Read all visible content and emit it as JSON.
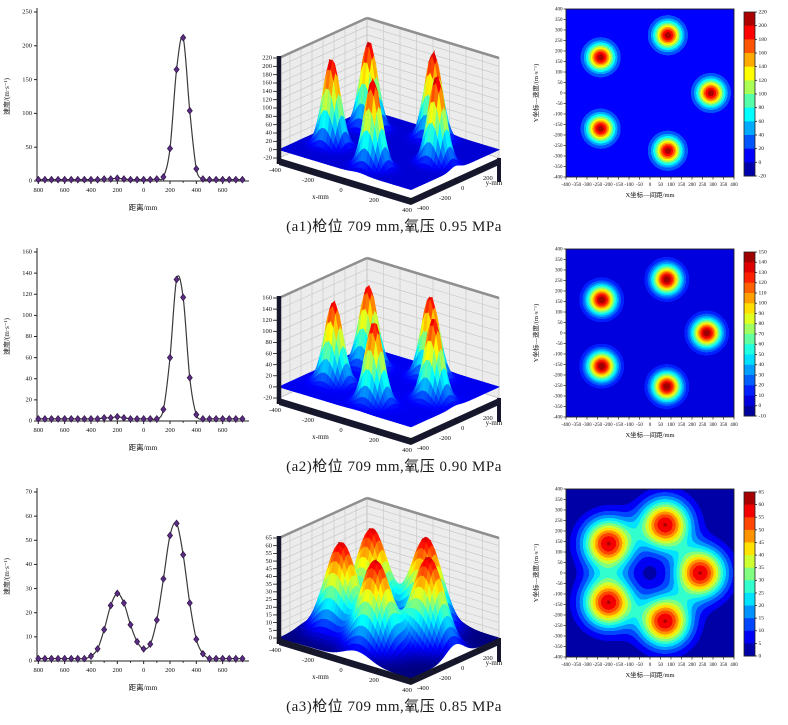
{
  "page": {
    "background": "#ffffff"
  },
  "style": {
    "marker_color": "#5b2d82",
    "marker_edge_color": "#2e1545",
    "line_color": "#3a3a3a",
    "axis_color": "#222222",
    "wall_color": "#ececec",
    "wall_grid_color": "#c6c6c6",
    "wall_cap_color": "#8f8f8f",
    "pedestal_color": "#16162c",
    "colormap": "jet"
  },
  "captions": {
    "a1": "(a1)枪位 709 mm,氧压 0.95 MPa",
    "a2": "(a2)枪位 709 mm,氧压 0.90 MPa",
    "a3": "(a3)枪位 709 mm,氧压 0.85 MPa"
  },
  "chart_data": [
    {
      "id": "a1-line",
      "type": "line",
      "row": "a1",
      "xlabel": "距离/mm",
      "ylabel": "速度/(m·s⁻¹)",
      "ylim": [
        0,
        250
      ],
      "ystep": 50,
      "xticks": [
        -800,
        -600,
        -400,
        -200,
        0,
        200,
        400,
        600
      ],
      "x": [
        -800,
        -750,
        -700,
        -650,
        -600,
        -550,
        -500,
        -450,
        -400,
        -350,
        -300,
        -250,
        -200,
        -150,
        -100,
        -50,
        0,
        50,
        100,
        150,
        200,
        250,
        300,
        350,
        400,
        450,
        500,
        550,
        600,
        650,
        700,
        750
      ],
      "y": [
        2,
        2,
        2,
        2,
        2,
        2,
        2,
        2,
        2,
        2,
        3,
        3,
        4,
        3,
        2,
        2,
        2,
        2,
        3,
        6,
        48,
        165,
        212,
        104,
        18,
        3,
        2,
        2,
        2,
        2,
        2,
        2
      ]
    },
    {
      "id": "a1-surface",
      "type": "surface3d",
      "row": "a1",
      "xlabel": "x-mm",
      "ylabel": "y-mm",
      "zlim": [
        -20,
        220
      ],
      "zstep": 20,
      "xticks": [
        -400,
        -200,
        0,
        200,
        400
      ],
      "yticks": [
        -400,
        -200,
        0,
        200
      ],
      "peaks": [
        [
          290,
          0
        ],
        [
          85,
          275
        ],
        [
          -235,
          170
        ],
        [
          -235,
          -170
        ],
        [
          85,
          -275
        ]
      ],
      "amp": 212,
      "sigma": 44
    },
    {
      "id": "a1-contour",
      "type": "heatmap",
      "row": "a1",
      "xlabel": "X坐标—间距/mm",
      "ylabel": "Y坐标—速度/(m·s⁻¹)",
      "xlim": [
        -400,
        400
      ],
      "ylim": [
        -400,
        400
      ],
      "tick_step": 50,
      "clim": [
        -20,
        220
      ],
      "cstep": 20,
      "peaks": [
        [
          290,
          0
        ],
        [
          85,
          275
        ],
        [
          -235,
          170
        ],
        [
          -235,
          -170
        ],
        [
          85,
          -275
        ]
      ],
      "amp": 212,
      "sigma": 44
    },
    {
      "id": "a2-line",
      "type": "line",
      "row": "a2",
      "xlabel": "距离/mm",
      "ylabel": "速度/(m·s⁻¹)",
      "ylim": [
        0,
        160
      ],
      "ystep": 20,
      "xticks": [
        -800,
        -600,
        -400,
        -200,
        0,
        200,
        400,
        600
      ],
      "x": [
        -800,
        -750,
        -700,
        -650,
        -600,
        -550,
        -500,
        -450,
        -400,
        -350,
        -300,
        -250,
        -200,
        -150,
        -100,
        -50,
        0,
        50,
        100,
        150,
        200,
        250,
        300,
        350,
        400,
        450,
        500,
        550,
        600,
        650,
        700,
        750
      ],
      "y": [
        2,
        2,
        2,
        2,
        2,
        2,
        2,
        2,
        2,
        2,
        3,
        3,
        4,
        3,
        2,
        2,
        2,
        2,
        2,
        11,
        60,
        134,
        117,
        41,
        6,
        2,
        2,
        2,
        2,
        2,
        2,
        2
      ]
    },
    {
      "id": "a2-surface",
      "type": "surface3d",
      "row": "a2",
      "xlabel": "x-mm",
      "ylabel": "y-mm",
      "zlim": [
        -20,
        160
      ],
      "zstep": 20,
      "xticks": [
        -400,
        -200,
        0,
        200,
        400
      ],
      "yticks": [
        -400,
        -200,
        0,
        200
      ],
      "peaks": [
        [
          270,
          0
        ],
        [
          80,
          255
        ],
        [
          -230,
          158
        ],
        [
          -230,
          -158
        ],
        [
          80,
          -255
        ]
      ],
      "amp": 148,
      "sigma": 46
    },
    {
      "id": "a2-contour",
      "type": "heatmap",
      "row": "a2",
      "xlabel": "X坐标—间距/mm",
      "ylabel": "Y坐标—速度/(m·s⁻¹)",
      "xlim": [
        -400,
        400
      ],
      "ylim": [
        -400,
        400
      ],
      "tick_step": 50,
      "clim": [
        -10,
        150
      ],
      "cstep": 10,
      "peaks": [
        [
          270,
          0
        ],
        [
          80,
          255
        ],
        [
          -230,
          158
        ],
        [
          -230,
          -158
        ],
        [
          80,
          -255
        ]
      ],
      "amp": 148,
      "sigma": 46
    },
    {
      "id": "a3-line",
      "type": "line",
      "row": "a3",
      "xlabel": "距离/mm",
      "ylabel": "速度/(m·s⁻¹)",
      "ylim": [
        0,
        70
      ],
      "ystep": 10,
      "xticks": [
        -800,
        -600,
        -400,
        -200,
        0,
        200,
        400,
        600
      ],
      "x": [
        -800,
        -750,
        -700,
        -650,
        -600,
        -550,
        -500,
        -450,
        -400,
        -350,
        -300,
        -250,
        -200,
        -150,
        -100,
        -50,
        0,
        50,
        100,
        150,
        200,
        250,
        300,
        350,
        400,
        450,
        500,
        550,
        600,
        650,
        700,
        750
      ],
      "y": [
        1,
        1,
        1,
        1,
        1,
        1,
        1,
        1,
        2,
        5,
        13,
        23,
        28,
        24,
        15,
        8,
        5,
        7,
        17,
        34,
        52,
        57,
        44,
        24,
        9,
        3,
        1,
        1,
        1,
        1,
        1,
        1
      ]
    },
    {
      "id": "a3-surface",
      "type": "surface3d",
      "row": "a3",
      "xlabel": "x-mm",
      "ylabel": "y-mm",
      "zlim": [
        0,
        65
      ],
      "zstep": 5,
      "xticks": [
        -400,
        -200,
        0,
        200,
        400
      ],
      "yticks": [
        -400,
        -200,
        0,
        200
      ],
      "peaks": [
        [
          240,
          0
        ],
        [
          72,
          230
        ],
        [
          -198,
          140
        ],
        [
          -198,
          -140
        ],
        [
          72,
          -230
        ]
      ],
      "amp": 60,
      "sigma": 82
    },
    {
      "id": "a3-contour",
      "type": "heatmap",
      "row": "a3",
      "xlabel": "X坐标—间距/mm",
      "ylabel": "Y坐标—速度/(m·s⁻¹)",
      "xlim": [
        -400,
        400
      ],
      "ylim": [
        -400,
        400
      ],
      "tick_step": 50,
      "clim": [
        0,
        65
      ],
      "cstep": 5,
      "peaks": [
        [
          240,
          0
        ],
        [
          72,
          230
        ],
        [
          -198,
          140
        ],
        [
          -198,
          -140
        ],
        [
          72,
          -230
        ]
      ],
      "amp": 60,
      "sigma": 82
    }
  ]
}
